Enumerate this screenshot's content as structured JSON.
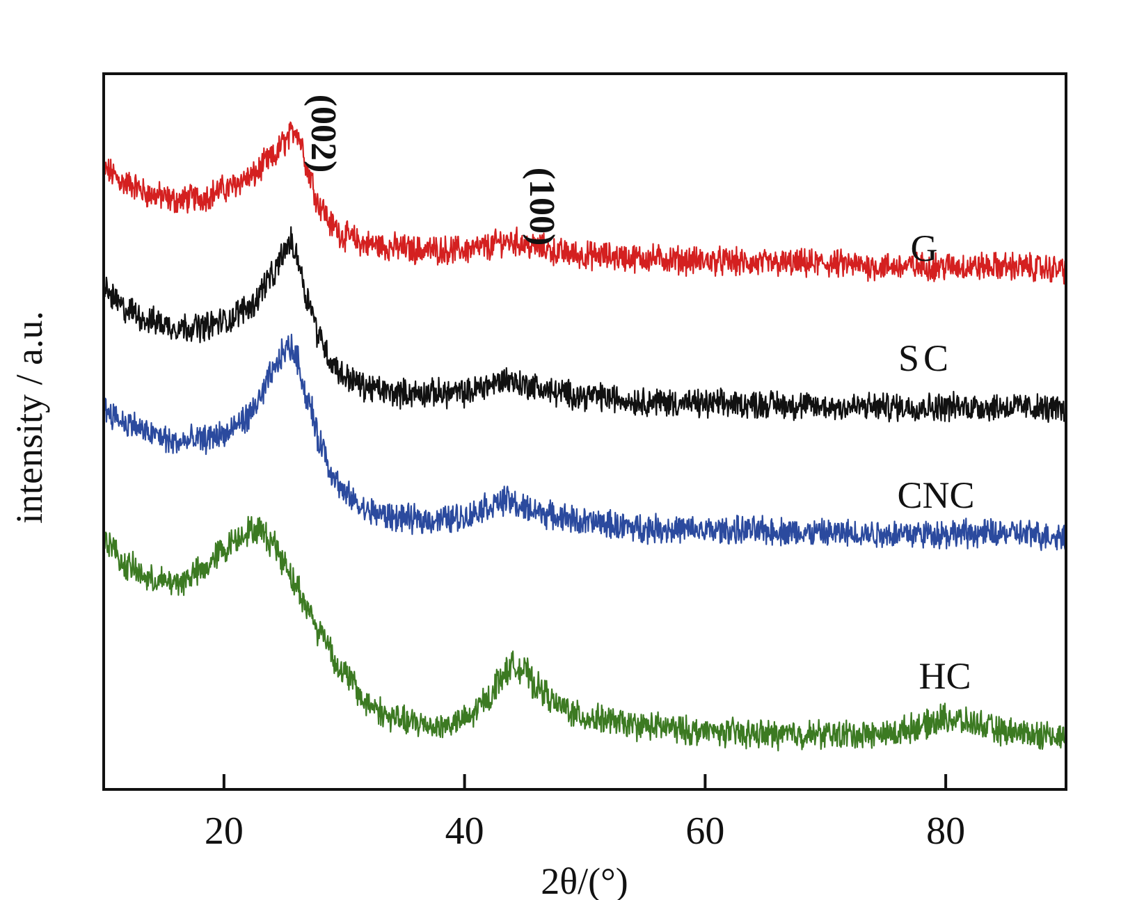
{
  "chart_data": {
    "type": "line",
    "title": "",
    "xlabel": "2θ/(°)",
    "ylabel": "intensity / a.u.",
    "xlim": [
      10,
      90
    ],
    "xticks": [
      "20",
      "40",
      "60",
      "80"
    ],
    "yticks": [],
    "grid": false,
    "legend": "none (inline series labels at right)",
    "annotations": [
      {
        "text": "(002)",
        "x": 26
      },
      {
        "text": "(100)",
        "x": 43.5
      }
    ],
    "series": [
      {
        "name": "G",
        "color": "#d42020",
        "x": [
          10,
          12,
          14,
          16,
          18,
          20,
          22,
          24,
          25,
          26,
          26.5,
          27,
          28,
          29,
          30,
          32,
          34,
          36,
          38,
          40,
          42,
          43,
          44,
          46,
          48,
          50,
          55,
          60,
          65,
          70,
          75,
          80,
          85,
          90
        ],
        "y": [
          9.25,
          9.0,
          8.8,
          8.7,
          8.75,
          8.9,
          9.1,
          9.45,
          9.75,
          10.0,
          9.7,
          9.2,
          8.6,
          8.25,
          8.05,
          7.9,
          7.85,
          7.8,
          7.8,
          7.8,
          7.85,
          7.95,
          7.95,
          7.85,
          7.75,
          7.7,
          7.65,
          7.6,
          7.55,
          7.55,
          7.5,
          7.5,
          7.5,
          7.45
        ]
      },
      {
        "name": "SC",
        "color": "#111111",
        "x": [
          10,
          12,
          14,
          16,
          18,
          20,
          22,
          24,
          25,
          25.5,
          26,
          27,
          28,
          29,
          30,
          32,
          34,
          36,
          38,
          40,
          42,
          43.5,
          45,
          48,
          50,
          55,
          60,
          65,
          70,
          75,
          80,
          85,
          90
        ],
        "y": [
          7.05,
          6.7,
          6.5,
          6.4,
          6.4,
          6.5,
          6.75,
          7.3,
          7.75,
          7.95,
          7.7,
          6.9,
          6.2,
          5.75,
          5.5,
          5.3,
          5.2,
          5.2,
          5.2,
          5.2,
          5.35,
          5.45,
          5.35,
          5.2,
          5.15,
          5.05,
          5.0,
          5.0,
          4.95,
          4.95,
          4.95,
          4.95,
          4.9
        ]
      },
      {
        "name": "CNC",
        "color": "#2b4a9e",
        "x": [
          10,
          12,
          14,
          16,
          18,
          20,
          22,
          23,
          24,
          25,
          25.5,
          26,
          27,
          28,
          29,
          30,
          32,
          34,
          36,
          38,
          40,
          42,
          43.5,
          45,
          48,
          50,
          55,
          60,
          65,
          70,
          75,
          80,
          85,
          90
        ],
        "y": [
          4.9,
          4.65,
          4.45,
          4.3,
          4.35,
          4.45,
          4.75,
          5.1,
          5.55,
          5.95,
          6.05,
          5.85,
          5.05,
          4.3,
          3.75,
          3.35,
          3.05,
          2.95,
          2.9,
          2.9,
          2.95,
          3.15,
          3.25,
          3.1,
          2.95,
          2.85,
          2.75,
          2.7,
          2.7,
          2.65,
          2.65,
          2.65,
          2.65,
          2.6
        ]
      },
      {
        "name": "HC",
        "color": "#3c7a22",
        "x": [
          10,
          12,
          14,
          16,
          18,
          20,
          21,
          22,
          23,
          24,
          25,
          26,
          27,
          28,
          30,
          32,
          34,
          36,
          38,
          40,
          42,
          43,
          44,
          45,
          46,
          48,
          50,
          55,
          60,
          65,
          70,
          75,
          78,
          80,
          82,
          85,
          88,
          90
        ],
        "y": [
          2.55,
          2.05,
          1.8,
          1.75,
          1.95,
          2.35,
          2.55,
          2.7,
          2.7,
          2.5,
          2.15,
          1.7,
          1.25,
          0.85,
          0.1,
          -0.45,
          -0.7,
          -0.8,
          -0.85,
          -0.75,
          -0.35,
          0.05,
          0.25,
          0.15,
          -0.15,
          -0.5,
          -0.7,
          -0.85,
          -0.95,
          -1.0,
          -1.0,
          -1.0,
          -0.85,
          -0.7,
          -0.8,
          -0.95,
          -1.0,
          -1.05
        ]
      }
    ]
  }
}
